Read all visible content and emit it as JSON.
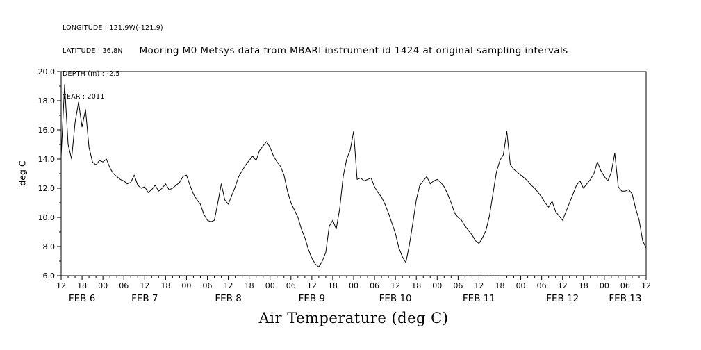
{
  "meta": {
    "lines": [
      "LONGITUDE : 121.9W(-121.9)",
      "LATITUDE : 36.8N",
      "DEPTH (m) : -2.5",
      "YEAR : 2011"
    ]
  },
  "chart_data": {
    "type": "line",
    "title": "Mooring M0 Metsys data from MBARI instrument id 1424 at original sampling intervals",
    "caption": "Air Temperature (deg C)",
    "ylabel": "deg C",
    "ylim": [
      6.0,
      20.0
    ],
    "y_ticks": [
      {
        "v": 6.0,
        "label": "6.0"
      },
      {
        "v": 8.0,
        "label": "8.0"
      },
      {
        "v": 10.0,
        "label": "10.0"
      },
      {
        "v": 12.0,
        "label": "12.0"
      },
      {
        "v": 14.0,
        "label": "14.0"
      },
      {
        "v": 16.0,
        "label": "16.0"
      },
      {
        "v": 18.0,
        "label": "18.0"
      },
      {
        "v": 20.0,
        "label": "20.0"
      }
    ],
    "x_hours_range": [
      0,
      168
    ],
    "x_ticks": [
      {
        "t": 0,
        "label": "12"
      },
      {
        "t": 6,
        "label": "18"
      },
      {
        "t": 12,
        "label": "00"
      },
      {
        "t": 18,
        "label": "06"
      },
      {
        "t": 24,
        "label": "12"
      },
      {
        "t": 30,
        "label": "18"
      },
      {
        "t": 36,
        "label": "00"
      },
      {
        "t": 42,
        "label": "06"
      },
      {
        "t": 48,
        "label": "12"
      },
      {
        "t": 54,
        "label": "18"
      },
      {
        "t": 60,
        "label": "00"
      },
      {
        "t": 66,
        "label": "06"
      },
      {
        "t": 72,
        "label": "12"
      },
      {
        "t": 78,
        "label": "18"
      },
      {
        "t": 84,
        "label": "00"
      },
      {
        "t": 90,
        "label": "06"
      },
      {
        "t": 96,
        "label": "12"
      },
      {
        "t": 102,
        "label": "18"
      },
      {
        "t": 108,
        "label": "00"
      },
      {
        "t": 114,
        "label": "06"
      },
      {
        "t": 120,
        "label": "12"
      },
      {
        "t": 126,
        "label": "18"
      },
      {
        "t": 132,
        "label": "00"
      },
      {
        "t": 138,
        "label": "06"
      },
      {
        "t": 144,
        "label": "12"
      },
      {
        "t": 150,
        "label": "18"
      },
      {
        "t": 156,
        "label": "00"
      },
      {
        "t": 162,
        "label": "06"
      },
      {
        "t": 168,
        "label": "12"
      }
    ],
    "day_labels": [
      {
        "t": 6,
        "label": "FEB 6"
      },
      {
        "t": 24,
        "label": "FEB 7"
      },
      {
        "t": 48,
        "label": "FEB 8"
      },
      {
        "t": 72,
        "label": "FEB 9"
      },
      {
        "t": 96,
        "label": "FEB 10"
      },
      {
        "t": 120,
        "label": "FEB 11"
      },
      {
        "t": 144,
        "label": "FEB 12"
      },
      {
        "t": 162,
        "label": "FEB 13"
      }
    ],
    "grid": false,
    "legend": "none",
    "line_color": "#000000",
    "background": "#ffffff",
    "series": [
      {
        "name": "air_temperature_degC",
        "x_unit": "hours after first tick (FEB 6 12:00)",
        "x_step_hours": 1,
        "values": [
          14.2,
          19.1,
          15.0,
          14.0,
          16.5,
          17.9,
          16.2,
          17.4,
          14.8,
          13.8,
          13.6,
          13.9,
          13.8,
          14.0,
          13.4,
          13.0,
          12.8,
          12.6,
          12.5,
          12.3,
          12.4,
          12.9,
          12.2,
          12.0,
          12.1,
          11.7,
          11.9,
          12.2,
          11.8,
          12.0,
          12.3,
          11.9,
          12.0,
          12.2,
          12.4,
          12.8,
          12.9,
          12.2,
          11.6,
          11.2,
          10.9,
          10.2,
          9.8,
          9.7,
          9.8,
          11.0,
          12.3,
          11.2,
          10.9,
          11.5,
          12.1,
          12.8,
          13.2,
          13.6,
          13.9,
          14.2,
          13.9,
          14.6,
          14.9,
          15.2,
          14.8,
          14.2,
          13.8,
          13.5,
          12.9,
          11.8,
          11.0,
          10.5,
          10.0,
          9.2,
          8.6,
          7.8,
          7.2,
          6.8,
          6.6,
          7.0,
          7.6,
          9.4,
          9.8,
          9.2,
          10.6,
          12.8,
          14.0,
          14.6,
          15.9,
          12.6,
          12.7,
          12.5,
          12.6,
          12.7,
          12.1,
          11.7,
          11.4,
          10.9,
          10.3,
          9.6,
          8.9,
          7.9,
          7.3,
          6.9,
          8.1,
          9.6,
          11.2,
          12.2,
          12.5,
          12.8,
          12.3,
          12.5,
          12.6,
          12.4,
          12.1,
          11.6,
          11.0,
          10.3,
          10.0,
          9.8,
          9.4,
          9.1,
          8.8,
          8.4,
          8.2,
          8.6,
          9.1,
          10.1,
          11.6,
          13.1,
          13.9,
          14.3,
          15.9,
          13.6,
          13.3,
          13.1,
          12.9,
          12.7,
          12.5,
          12.2,
          12.0,
          11.7,
          11.4,
          11.0,
          10.7,
          11.1,
          10.4,
          10.1,
          9.8,
          10.4,
          11.0,
          11.6,
          12.2,
          12.5,
          12.0,
          12.3,
          12.6,
          13.0,
          13.8,
          13.2,
          12.8,
          12.5,
          13.1,
          14.4,
          12.1,
          11.8,
          11.8,
          11.9,
          11.6,
          10.6,
          9.8,
          8.4,
          7.9
        ]
      }
    ]
  }
}
